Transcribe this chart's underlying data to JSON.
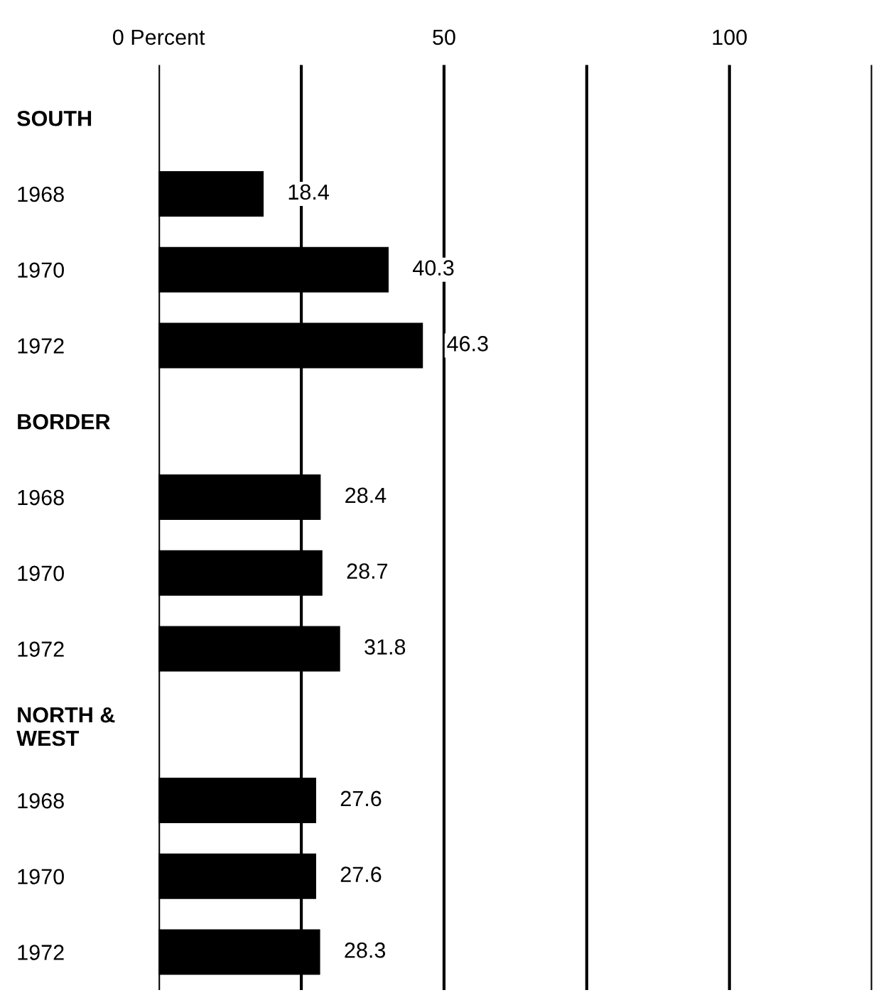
{
  "chart_data": {
    "type": "bar",
    "orientation": "horizontal",
    "categories": [
      "SOUTH",
      "1968",
      "1970",
      "1972",
      "BORDER",
      "1968",
      "1970",
      "1972",
      "NORTH &\nWEST",
      "1968",
      "1970",
      "1972"
    ],
    "values": [
      null,
      18.4,
      40.3,
      46.3,
      null,
      28.4,
      28.7,
      31.8,
      null,
      27.6,
      27.6,
      28.3
    ],
    "color": "#000000",
    "data_labels": true,
    "xlim": [
      0,
      125
    ],
    "xticks": [
      {
        "value": 0,
        "label": "0 Percent"
      },
      {
        "value": 25,
        "label": null
      },
      50,
      {
        "value": 75,
        "label": null
      },
      100,
      {
        "value": 125,
        "label": null
      }
    ],
    "grid": "x",
    "legend": false
  }
}
